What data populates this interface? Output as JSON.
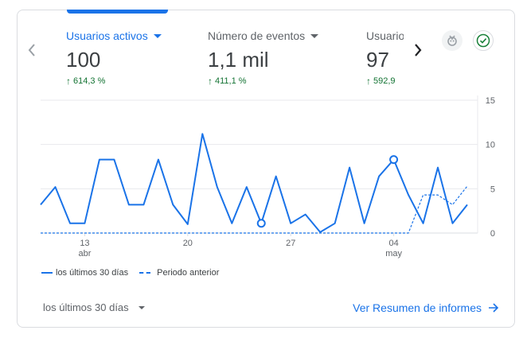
{
  "nav": {
    "prev_label": "‹",
    "next_label": "›"
  },
  "metrics": [
    {
      "label": "Usuarios activos",
      "value": "100",
      "change": "614,3 %"
    },
    {
      "label": "Número de eventos",
      "value": "1,1 mil",
      "change": "411,1 %"
    },
    {
      "label": "Usuarios",
      "value": "97",
      "change": "592,9"
    }
  ],
  "header_icons": {
    "insights_icon": "insights-icon",
    "check_icon": "check-circle-icon",
    "check_color": "#188038"
  },
  "chart_data": {
    "type": "line",
    "title": "",
    "xlabel": "",
    "ylabel": "",
    "ylim": [
      0,
      15
    ],
    "y_ticks": [
      "15",
      "10",
      "5",
      "0"
    ],
    "x_ticks": [
      {
        "day": "13",
        "month": "abr"
      },
      {
        "day": "20",
        "month": ""
      },
      {
        "day": "27",
        "month": ""
      },
      {
        "day": "04",
        "month": "may"
      }
    ],
    "grid": true,
    "series": [
      {
        "name": "los últimos 30 días",
        "style": "solid",
        "color": "#1a73e8",
        "values": [
          3.2,
          5.2,
          1.1,
          1.1,
          8.3,
          8.3,
          3.2,
          3.2,
          8.3,
          3.2,
          1.0,
          11.2,
          5.2,
          1.1,
          5.2,
          1.1,
          6.4,
          1.1,
          2.1,
          0.1,
          1.1,
          7.4,
          1.1,
          6.4,
          8.3,
          4.3,
          1.1,
          7.4,
          1.1,
          3.2
        ],
        "markers": [
          15,
          24
        ]
      },
      {
        "name": "Periodo anterior",
        "style": "dashed",
        "color": "#1a73e8",
        "values": [
          0,
          0,
          0,
          0,
          0,
          0,
          0,
          0,
          0,
          0,
          0,
          0,
          0,
          0,
          0,
          0,
          0,
          0,
          0,
          0,
          0,
          0,
          0,
          0,
          0,
          0,
          4.3,
          4.3,
          3.2,
          5.3
        ]
      }
    ]
  },
  "legend": {
    "current": "los últimos 30 días",
    "previous": "Periodo anterior"
  },
  "footer": {
    "period": "los últimos 30 días",
    "link": "Ver Resumen de informes"
  }
}
